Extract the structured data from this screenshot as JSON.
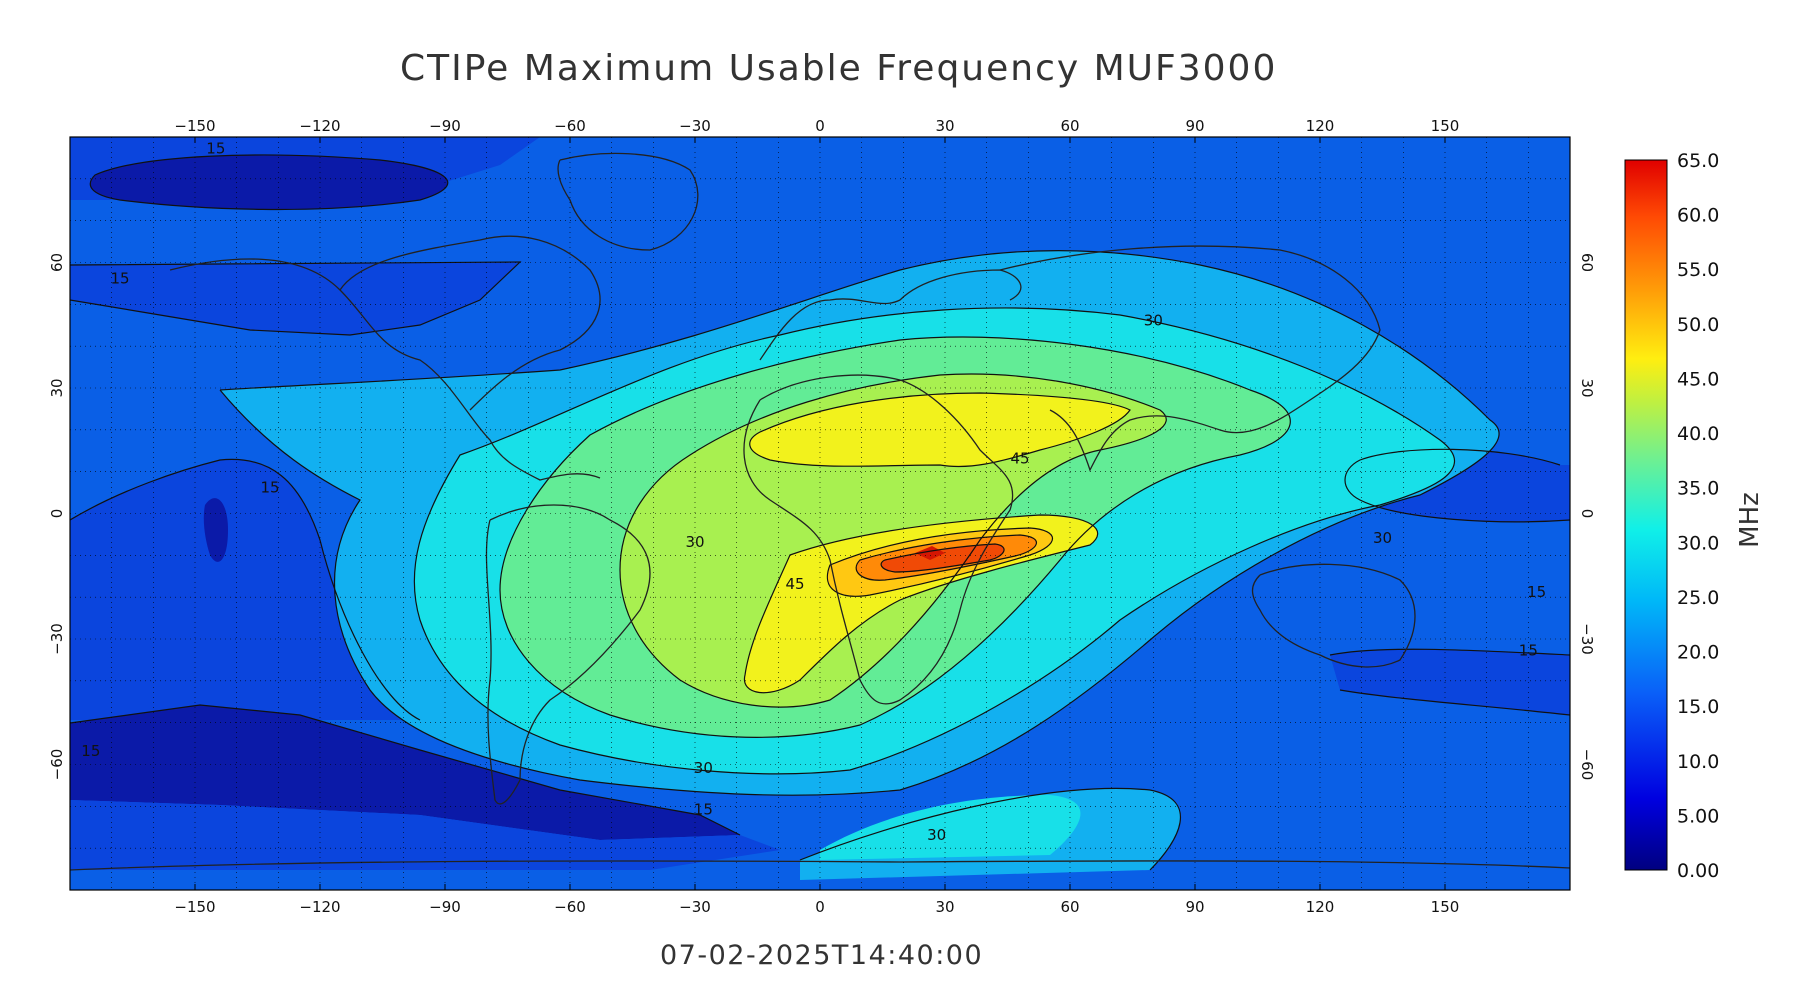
{
  "title": "CTIPe Maximum Usable Frequency MUF3000",
  "timestamp": "07-02-2025T14:40:00",
  "unit_label": "MHz",
  "map": {
    "lon_ticks": [
      -150,
      -120,
      -90,
      -60,
      -30,
      0,
      30,
      60,
      90,
      120,
      150
    ],
    "lat_ticks": [
      60,
      30,
      0,
      -30,
      -60
    ],
    "lon_range": [
      -180,
      180
    ],
    "lat_range": [
      -90,
      90
    ],
    "grid": "dotted 10 degrees",
    "contour_interval_mhz": 5,
    "contour_labels": [
      {
        "text": "15",
        "lon": -145,
        "lat": 86
      },
      {
        "text": "15",
        "lon": -168,
        "lat": 55
      },
      {
        "text": "15",
        "lon": -132,
        "lat": 5
      },
      {
        "text": "15",
        "lon": -175,
        "lat": -58
      },
      {
        "text": "30",
        "lon": 80,
        "lat": 45
      },
      {
        "text": "45",
        "lon": 48,
        "lat": 12
      },
      {
        "text": "30",
        "lon": -30,
        "lat": -8
      },
      {
        "text": "45",
        "lon": -6,
        "lat": -18
      },
      {
        "text": "30",
        "lon": 135,
        "lat": -7
      },
      {
        "text": "15",
        "lon": 172,
        "lat": -20
      },
      {
        "text": "15",
        "lon": 170,
        "lat": -34
      },
      {
        "text": "30",
        "lon": -28,
        "lat": -62
      },
      {
        "text": "15",
        "lon": -28,
        "lat": -72
      },
      {
        "text": "30",
        "lon": 28,
        "lat": -78
      }
    ],
    "colors": {
      "5": "#0b1aa8",
      "10": "#0b45dd",
      "15": "#0f7ef0",
      "20": "#12b0f0",
      "25": "#18e0e8",
      "30": "#62ec96",
      "35": "#a8f050",
      "40": "#f2f21c",
      "45": "#ffc812",
      "50": "#ff8a08",
      "55": "#f04a06",
      "60": "#d41602",
      "bg": "#0a5fe6"
    }
  },
  "colorbar": {
    "labels": [
      "65.0",
      "60.0",
      "55.0",
      "50.0",
      "45.0",
      "40.0",
      "35.0",
      "30.0",
      "25.0",
      "20.0",
      "15.0",
      "10.0",
      "5.00",
      "0.00"
    ],
    "min": 0,
    "max": 65
  }
}
